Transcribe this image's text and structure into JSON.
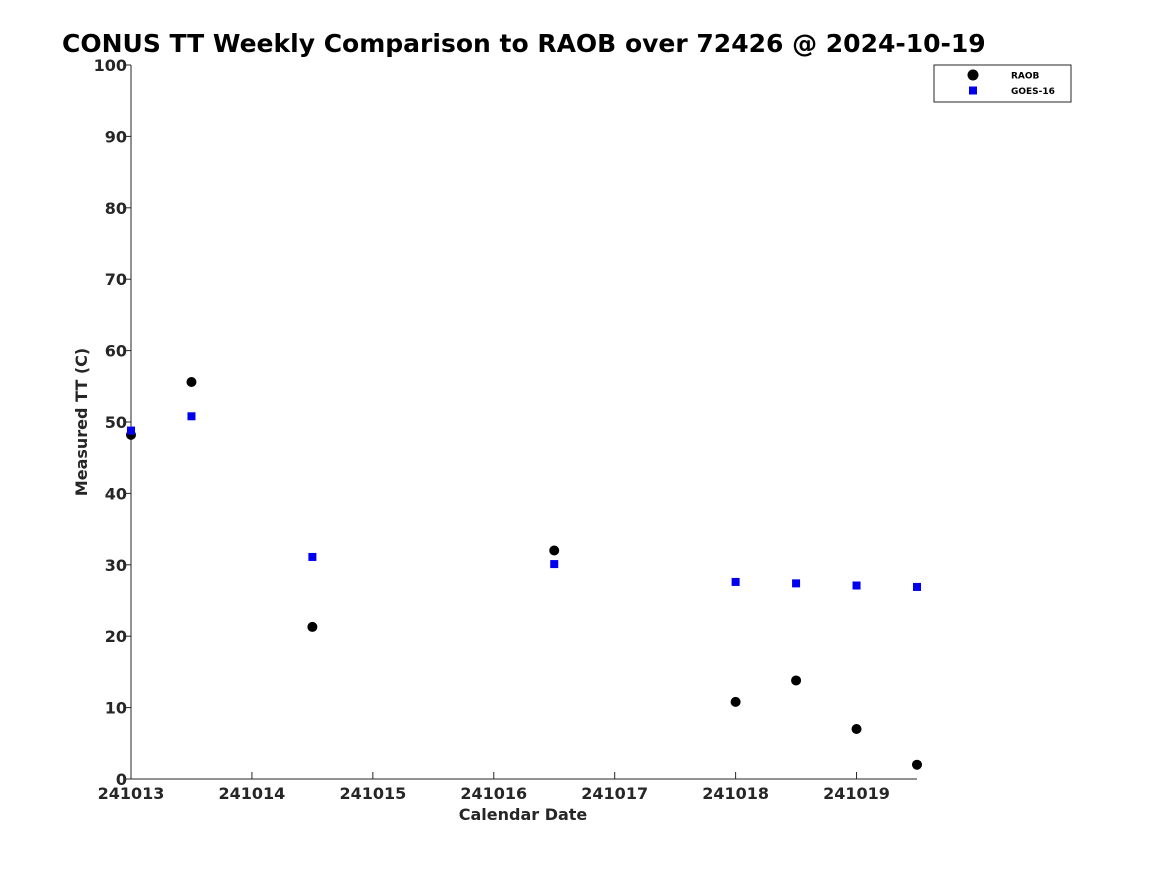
{
  "chart_data": {
    "type": "scatter",
    "title": "CONUS TT Weekly Comparison to RAOB over 72426 @ 2024-10-19",
    "xlabel": "Calendar Date",
    "ylabel": "Measured TT (C)",
    "x_tick_labels": [
      "241013",
      "241014",
      "241015",
      "241016",
      "241017",
      "241018",
      "241019"
    ],
    "y_tick_labels": [
      "0",
      "10",
      "20",
      "30",
      "40",
      "50",
      "60",
      "70",
      "80",
      "90",
      "100"
    ],
    "xlim_days": [
      0,
      6.5
    ],
    "ylim": [
      0,
      100
    ],
    "grid": false,
    "legend_position": "top-right",
    "series": [
      {
        "name": "RAOB",
        "marker": "circle",
        "color": "#000000",
        "x": [
          "241013 00Z",
          "241013 12Z",
          "241014 12Z",
          "241016 12Z",
          "241018 00Z",
          "241018 12Z",
          "241019 00Z",
          "241019 12Z"
        ],
        "values": [
          48.2,
          55.6,
          21.3,
          32.0,
          10.8,
          13.8,
          7.0,
          2.0
        ]
      },
      {
        "name": "GOES-16",
        "marker": "square",
        "color": "#0000ee",
        "x": [
          "241013 00Z",
          "241013 12Z",
          "241014 12Z",
          "241016 12Z",
          "241018 00Z",
          "241018 12Z",
          "241019 00Z",
          "241019 12Z"
        ],
        "values": [
          48.8,
          50.8,
          31.1,
          30.1,
          27.6,
          27.4,
          27.1,
          26.9
        ]
      }
    ]
  }
}
